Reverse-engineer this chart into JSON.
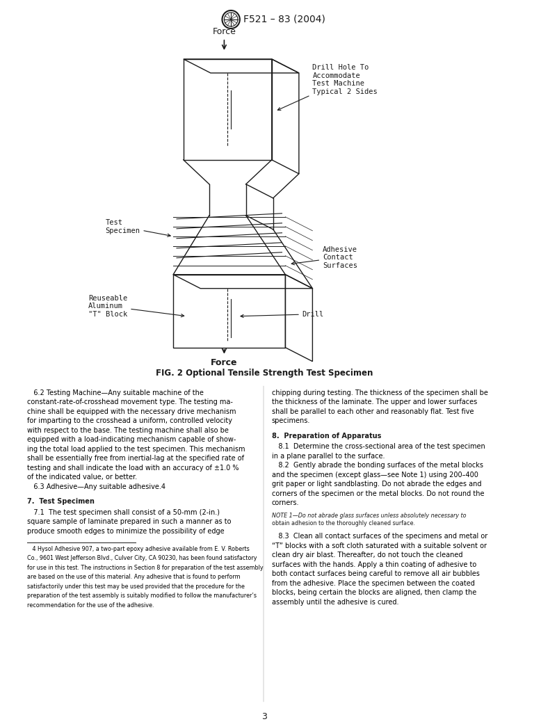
{
  "title": "F521 – 83 (2004)",
  "fig_caption": "FIG. 2 Optional Tensile Strength Test Specimen",
  "page_number": "3",
  "background_color": "#ffffff",
  "text_color": "#000000",
  "diagram_color": "#1a1a1a",
  "labels": {
    "force_top": "Force",
    "force_bottom": "Force",
    "drill_hole": "Drill Hole To\nAccommodate\nTest Machine\nTypical 2 Sides",
    "test_specimen": "Test\nSpecimen",
    "adhesive": "Adhesive\nContact\nSurfaces",
    "reuseable": "Reuseable\nAluminum\n\"T\" Block",
    "drill": "Drill"
  },
  "body_text_left": [
    "   6.2 Testing Machine—Any suitable machine of the",
    "constant-rate-of-crosshead movement type. The testing ma-",
    "chine shall be equipped with the necessary drive mechanism",
    "for imparting to the crosshead a uniform, controlled velocity",
    "with respect to the base. The testing machine shall also be",
    "equipped with a load-indicating mechanism capable of show-",
    "ing the total load applied to the test specimen. This mechanism",
    "shall be essentially free from inertial-lag at the specified rate of",
    "testing and shall indicate the load with an accuracy of ±1.0 %",
    "of the indicated value, or better.",
    "   6.3 Adhesive—Any suitable adhesive.4"
  ],
  "section7_head": "7.  Test Specimen",
  "section7_text": [
    "   7.1  The test specimen shall consist of a 50-mm (2-in.)",
    "square sample of laminate prepared in such a manner as to",
    "produce smooth edges to minimize the possibility of edge"
  ],
  "body_text_right": [
    "chipping during testing. The thickness of the specimen shall be",
    "the thickness of the laminate. The upper and lower surfaces",
    "shall be parallel to each other and reasonably flat. Test five",
    "specimens."
  ],
  "section8_head": "8.  Preparation of Apparatus",
  "section8_text": [
    "   8.1  Determine the cross-sectional area of the test specimen",
    "in a plane parallel to the surface.",
    "   8.2  Gently abrade the bonding surfaces of the metal blocks",
    "and the specimen (except glass—see Note 1) using 200–400",
    "grit paper or light sandblasting. Do not abrade the edges and",
    "corners of the specimen or the metal blocks. Do not round the",
    "corners."
  ],
  "note1": "NOTE 1—Do not abrade glass surfaces unless absolutely necessary to\nobtain adhesion to the thoroughly cleaned surface.",
  "section83_text": [
    "   8.3  Clean all contact surfaces of the specimens and metal or",
    "“T” blocks with a soft cloth saturated with a suitable solvent or",
    "clean dry air blast. Thereafter, do not touch the cleaned",
    "surfaces with the hands. Apply a thin coating of adhesive to",
    "both contact surfaces being careful to remove all air bubbles",
    "from the adhesive. Place the specimen between the coated",
    "blocks, being certain the blocks are aligned, then clamp the",
    "assembly until the adhesive is cured."
  ],
  "footnote": [
    "   4 Hysol Adhesive 907, a two-part epoxy adhesive available from E. V. Roberts",
    "Co., 9601 West Jefferson Blvd., Culver City, CA 90230, has been found satisfactory",
    "for use in this test. The instructions in Section 8 for preparation of the test assembly",
    "are based on the use of this material. Any adhesive that is found to perform",
    "satisfactorily under this test may be used provided that the procedure for the",
    "preparation of the test assembly is suitably modified to follow the manufacturer’s",
    "recommendation for the use of the adhesive."
  ]
}
